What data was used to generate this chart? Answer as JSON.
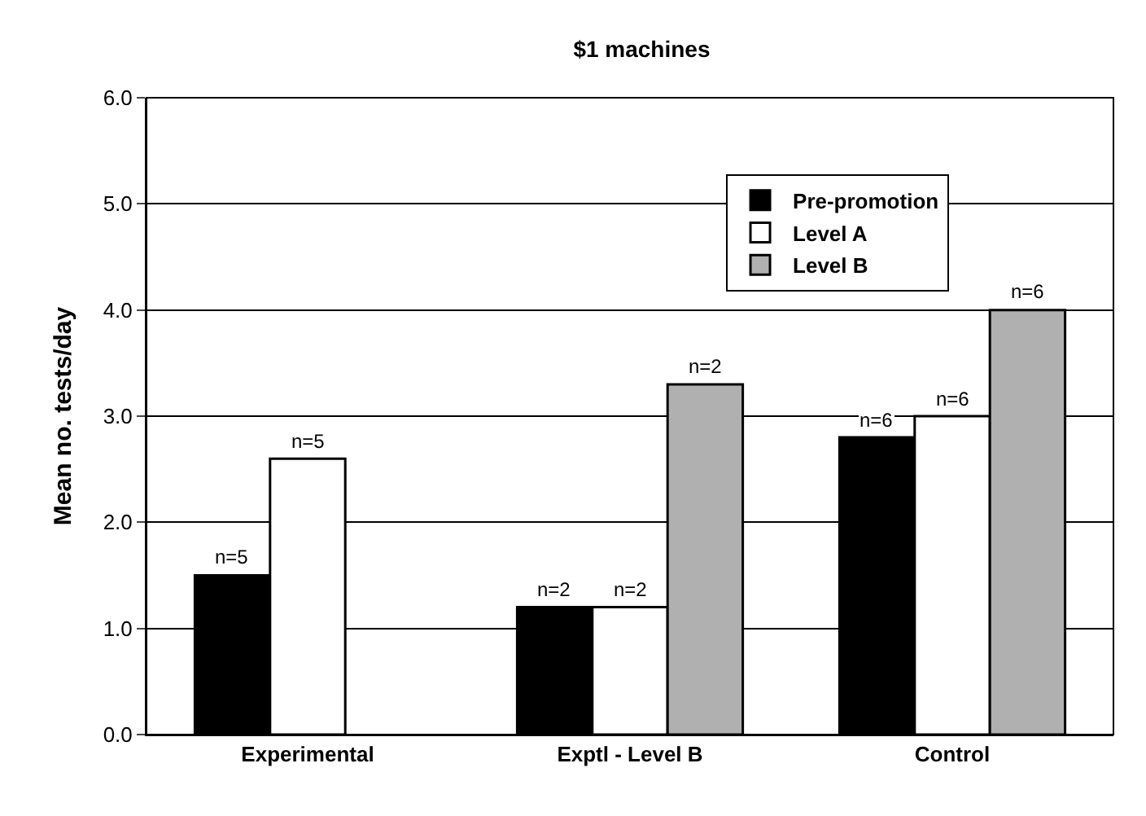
{
  "chart_data": {
    "type": "bar",
    "title": "$1 machines",
    "ylabel": "Mean no. tests/day",
    "categories": [
      "Experimental",
      "Exptl - Level B",
      "Control"
    ],
    "series": [
      {
        "name": "Pre-promotion",
        "color": "#000000",
        "values": [
          1.5,
          1.2,
          2.8
        ]
      },
      {
        "name": "Level A",
        "color": "#ffffff",
        "values": [
          2.6,
          1.2,
          3.0
        ]
      },
      {
        "name": "Level B",
        "color": "#b0b0b0",
        "values": [
          null,
          3.3,
          4.0
        ]
      }
    ],
    "annotations": [
      "n=5",
      "n=2",
      "n=6",
      "n=5",
      "n=2",
      "n=6",
      "n=2",
      "n=6"
    ],
    "ylim": [
      0,
      6
    ],
    "yticks": [
      {
        "value": 0,
        "label": "0.0"
      },
      {
        "value": 1,
        "label": "1.0"
      },
      {
        "value": 2,
        "label": "2.0"
      },
      {
        "value": 3,
        "label": "3.0"
      },
      {
        "value": 4,
        "label": "4.0"
      },
      {
        "value": 5,
        "label": "5.0"
      },
      {
        "value": 6,
        "label": "6.0"
      }
    ],
    "grid": "y",
    "legend": "top right"
  }
}
